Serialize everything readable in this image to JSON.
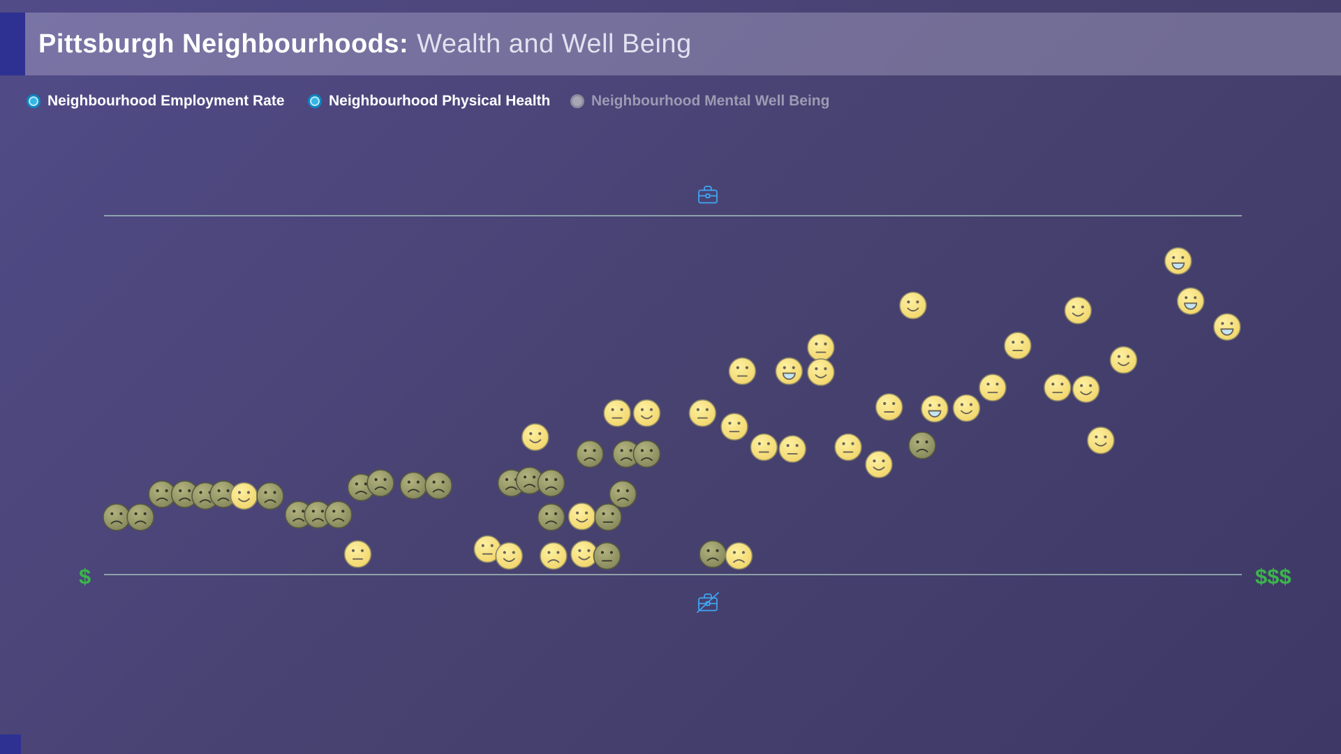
{
  "header": {
    "title_bold": "Pittsburgh Neighbourhoods:",
    "title_light": "Wealth and Well Being"
  },
  "legend": {
    "items": [
      {
        "label": "Neighbourhood Employment Rate",
        "state": "on",
        "color": "#35b5e5"
      },
      {
        "label": "Neighbourhood Physical Health",
        "state": "on",
        "color": "#35b5e5"
      },
      {
        "label": "Neighbourhood Mental Well Being",
        "state": "off",
        "color": "#a8a6b4"
      }
    ]
  },
  "axes": {
    "x_left_label": "$",
    "x_right_label": "$$$",
    "top_icon": "briefcase",
    "bottom_icon": "briefcase-crossed"
  },
  "colors": {
    "accent_green": "#3bb54a",
    "icon_blue": "#3fa9f5",
    "line": "#a5c3bc",
    "face_yellow_fill_inner": "#fdf0a0",
    "face_yellow_fill_outer": "#f1d468",
    "face_yellow_stroke": "#8a8568",
    "face_yellow_feature": "#6a6456",
    "face_olive_fill_inner": "#b2b37e",
    "face_olive_fill_outer": "#84865a",
    "face_olive_stroke": "#565840",
    "face_olive_feature": "#383a2c",
    "mouth_open_fill": "#c4e4f2"
  },
  "chart_data": {
    "type": "scatter",
    "title": "Pittsburgh Neighbourhoods: Wealth and Well Being",
    "xlabel_left": "$",
    "xlabel_right": "$$$",
    "top_axis_marker": "briefcase",
    "bottom_axis_marker": "briefcase-crossed",
    "xlim": [
      0,
      100
    ],
    "ylim": [
      0,
      100
    ],
    "marker": "emoji-face",
    "points": [
      {
        "x": 1.1,
        "y": 16.0,
        "color": "olive",
        "mood": "sad"
      },
      {
        "x": 3.2,
        "y": 16.0,
        "color": "olive",
        "mood": "sad"
      },
      {
        "x": 5.1,
        "y": 22.4,
        "color": "olive",
        "mood": "sad"
      },
      {
        "x": 7.1,
        "y": 22.4,
        "color": "olive",
        "mood": "sad"
      },
      {
        "x": 8.9,
        "y": 21.9,
        "color": "olive",
        "mood": "sad"
      },
      {
        "x": 10.5,
        "y": 22.4,
        "color": "olive",
        "mood": "sad"
      },
      {
        "x": 12.3,
        "y": 21.9,
        "color": "yellow",
        "mood": "smile"
      },
      {
        "x": 14.6,
        "y": 21.9,
        "color": "olive",
        "mood": "sad"
      },
      {
        "x": 17.1,
        "y": 16.7,
        "color": "olive",
        "mood": "sad"
      },
      {
        "x": 18.8,
        "y": 16.7,
        "color": "olive",
        "mood": "sad"
      },
      {
        "x": 20.6,
        "y": 16.7,
        "color": "olive",
        "mood": "sad"
      },
      {
        "x": 22.3,
        "y": 5.7,
        "color": "yellow",
        "mood": "neutral"
      },
      {
        "x": 22.6,
        "y": 24.3,
        "color": "olive",
        "mood": "sad"
      },
      {
        "x": 24.3,
        "y": 25.5,
        "color": "olive",
        "mood": "sad"
      },
      {
        "x": 27.2,
        "y": 24.8,
        "color": "olive",
        "mood": "sad"
      },
      {
        "x": 29.4,
        "y": 24.8,
        "color": "olive",
        "mood": "sad"
      },
      {
        "x": 33.7,
        "y": 7.1,
        "color": "yellow",
        "mood": "neutral"
      },
      {
        "x": 35.6,
        "y": 5.2,
        "color": "yellow",
        "mood": "smile"
      },
      {
        "x": 35.8,
        "y": 25.5,
        "color": "olive",
        "mood": "sad"
      },
      {
        "x": 37.4,
        "y": 26.2,
        "color": "olive",
        "mood": "sad"
      },
      {
        "x": 37.9,
        "y": 38.3,
        "color": "yellow",
        "mood": "smile"
      },
      {
        "x": 39.3,
        "y": 25.5,
        "color": "olive",
        "mood": "sad"
      },
      {
        "x": 39.3,
        "y": 16.0,
        "color": "olive",
        "mood": "sad"
      },
      {
        "x": 39.5,
        "y": 5.2,
        "color": "yellow",
        "mood": "sad"
      },
      {
        "x": 42.0,
        "y": 16.2,
        "color": "yellow",
        "mood": "smile"
      },
      {
        "x": 42.2,
        "y": 5.7,
        "color": "yellow",
        "mood": "smile"
      },
      {
        "x": 42.7,
        "y": 33.6,
        "color": "olive",
        "mood": "sad"
      },
      {
        "x": 44.2,
        "y": 5.2,
        "color": "olive",
        "mood": "neutral"
      },
      {
        "x": 44.3,
        "y": 16.0,
        "color": "olive",
        "mood": "neutral"
      },
      {
        "x": 45.1,
        "y": 45.0,
        "color": "yellow",
        "mood": "neutral"
      },
      {
        "x": 45.6,
        "y": 22.4,
        "color": "olive",
        "mood": "sad"
      },
      {
        "x": 45.9,
        "y": 33.6,
        "color": "olive",
        "mood": "sad"
      },
      {
        "x": 47.7,
        "y": 45.0,
        "color": "yellow",
        "mood": "smile"
      },
      {
        "x": 47.7,
        "y": 33.6,
        "color": "olive",
        "mood": "sad"
      },
      {
        "x": 52.6,
        "y": 45.0,
        "color": "yellow",
        "mood": "neutral"
      },
      {
        "x": 53.5,
        "y": 5.7,
        "color": "olive",
        "mood": "sad"
      },
      {
        "x": 55.4,
        "y": 41.2,
        "color": "yellow",
        "mood": "neutral"
      },
      {
        "x": 55.8,
        "y": 5.2,
        "color": "yellow",
        "mood": "sad"
      },
      {
        "x": 56.1,
        "y": 56.7,
        "color": "yellow",
        "mood": "neutral"
      },
      {
        "x": 58.0,
        "y": 35.5,
        "color": "yellow",
        "mood": "neutral"
      },
      {
        "x": 60.2,
        "y": 56.7,
        "color": "yellow",
        "mood": "bigsmile"
      },
      {
        "x": 60.5,
        "y": 35.0,
        "color": "yellow",
        "mood": "neutral"
      },
      {
        "x": 63.0,
        "y": 63.3,
        "color": "yellow",
        "mood": "neutral"
      },
      {
        "x": 63.0,
        "y": 56.4,
        "color": "yellow",
        "mood": "smile"
      },
      {
        "x": 65.4,
        "y": 35.5,
        "color": "yellow",
        "mood": "neutral"
      },
      {
        "x": 68.1,
        "y": 30.7,
        "color": "yellow",
        "mood": "smile"
      },
      {
        "x": 69.0,
        "y": 46.7,
        "color": "yellow",
        "mood": "neutral"
      },
      {
        "x": 71.1,
        "y": 75.0,
        "color": "yellow",
        "mood": "smile"
      },
      {
        "x": 71.9,
        "y": 36.0,
        "color": "olive",
        "mood": "sad"
      },
      {
        "x": 73.0,
        "y": 46.2,
        "color": "yellow",
        "mood": "bigsmile"
      },
      {
        "x": 75.8,
        "y": 46.4,
        "color": "yellow",
        "mood": "smile"
      },
      {
        "x": 78.1,
        "y": 52.1,
        "color": "yellow",
        "mood": "neutral"
      },
      {
        "x": 80.3,
        "y": 63.8,
        "color": "yellow",
        "mood": "neutral"
      },
      {
        "x": 83.8,
        "y": 52.1,
        "color": "yellow",
        "mood": "neutral"
      },
      {
        "x": 85.6,
        "y": 73.6,
        "color": "yellow",
        "mood": "smile"
      },
      {
        "x": 86.3,
        "y": 51.7,
        "color": "yellow",
        "mood": "smile"
      },
      {
        "x": 87.6,
        "y": 37.4,
        "color": "yellow",
        "mood": "smile"
      },
      {
        "x": 89.6,
        "y": 59.8,
        "color": "yellow",
        "mood": "smile"
      },
      {
        "x": 94.4,
        "y": 87.4,
        "color": "yellow",
        "mood": "bigsmile"
      },
      {
        "x": 95.5,
        "y": 76.2,
        "color": "yellow",
        "mood": "bigsmile"
      },
      {
        "x": 98.7,
        "y": 69.0,
        "color": "yellow",
        "mood": "bigsmile"
      }
    ]
  }
}
